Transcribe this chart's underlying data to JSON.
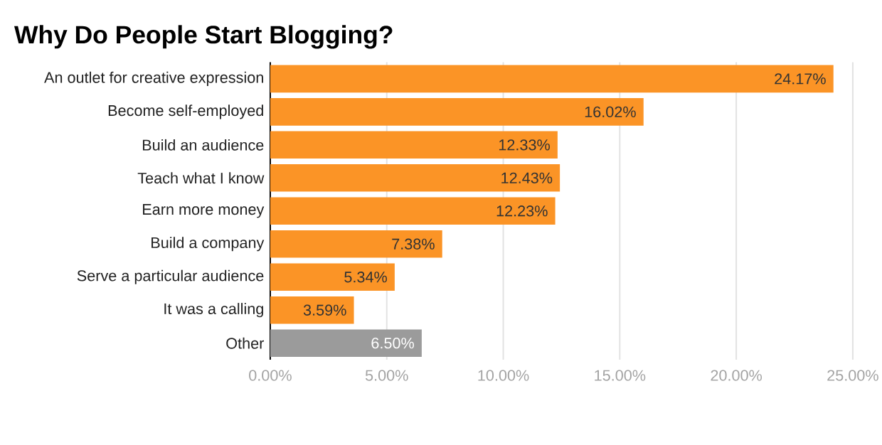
{
  "chart_data": {
    "type": "bar",
    "orientation": "horizontal",
    "title": "Why Do People Start Blogging?",
    "categories": [
      "An outlet for creative expression",
      "Become self-employed",
      "Build an audience",
      "Teach what I know",
      "Earn more money",
      "Build a company",
      "Serve a particular audience",
      "It was a calling",
      "Other"
    ],
    "values": [
      24.17,
      16.02,
      12.33,
      12.43,
      12.23,
      7.38,
      5.34,
      3.59,
      6.5
    ],
    "colors": [
      "#fb9426",
      "#fb9426",
      "#fb9426",
      "#fb9426",
      "#fb9426",
      "#fb9426",
      "#fb9426",
      "#fb9426",
      "#9b9b9b"
    ],
    "value_labels": [
      "24.17%",
      "16.02%",
      "12.33%",
      "12.43%",
      "12.23%",
      "7.38%",
      "5.34%",
      "3.59%",
      "6.50%"
    ],
    "xlim": [
      0,
      25
    ],
    "xticks": [
      {
        "value": 0,
        "label": "0.00%"
      },
      {
        "value": 5,
        "label": "5.00%"
      },
      {
        "value": 10,
        "label": "10.00%"
      },
      {
        "value": 15,
        "label": "15.00%"
      },
      {
        "value": 20,
        "label": "20.00%"
      },
      {
        "value": 25,
        "label": "25.00%"
      }
    ],
    "grid": "x"
  }
}
